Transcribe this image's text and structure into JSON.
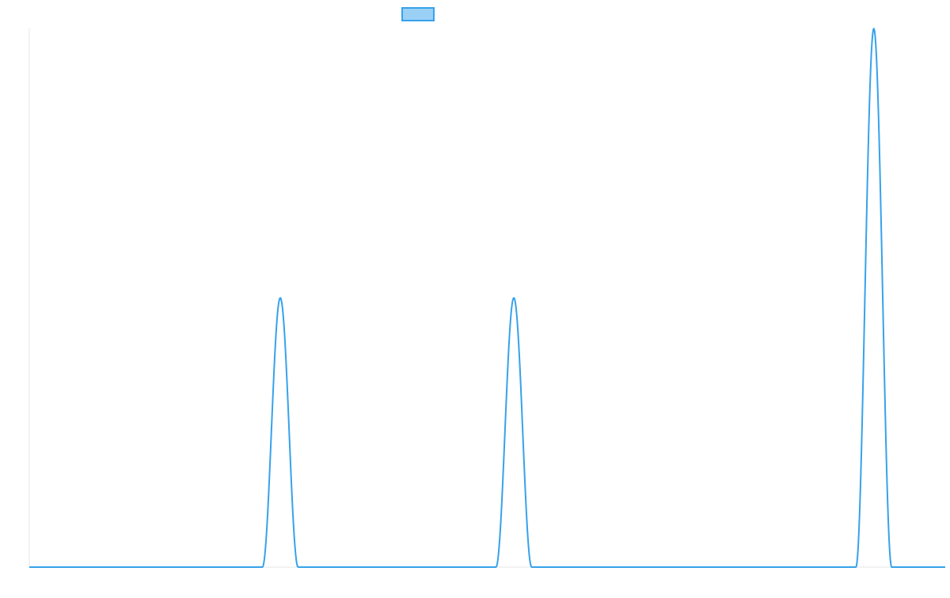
{
  "colors": {
    "line": "#36a2eb",
    "legend_fill": "#9ad0f5",
    "axis": "#e5e5e5",
    "background": "#ffffff"
  },
  "chart_data": {
    "type": "line",
    "title": "",
    "xlabel": "",
    "ylabel": "",
    "grid": false,
    "legend_placement": "top-center",
    "xlim": [
      0,
      1
    ],
    "ylim": [
      0,
      1
    ],
    "series": [
      {
        "curve": "peaks",
        "baseline": 0,
        "peaks": [
          {
            "center": 0.274,
            "height": 0.5,
            "half_width": 0.0195
          },
          {
            "center": 0.529,
            "height": 0.5,
            "half_width": 0.0195
          },
          {
            "center": 0.922,
            "height": 1.0,
            "half_width": 0.0195
          }
        ],
        "color": "#36a2eb",
        "legend_fill": "#9ad0f5"
      }
    ]
  }
}
